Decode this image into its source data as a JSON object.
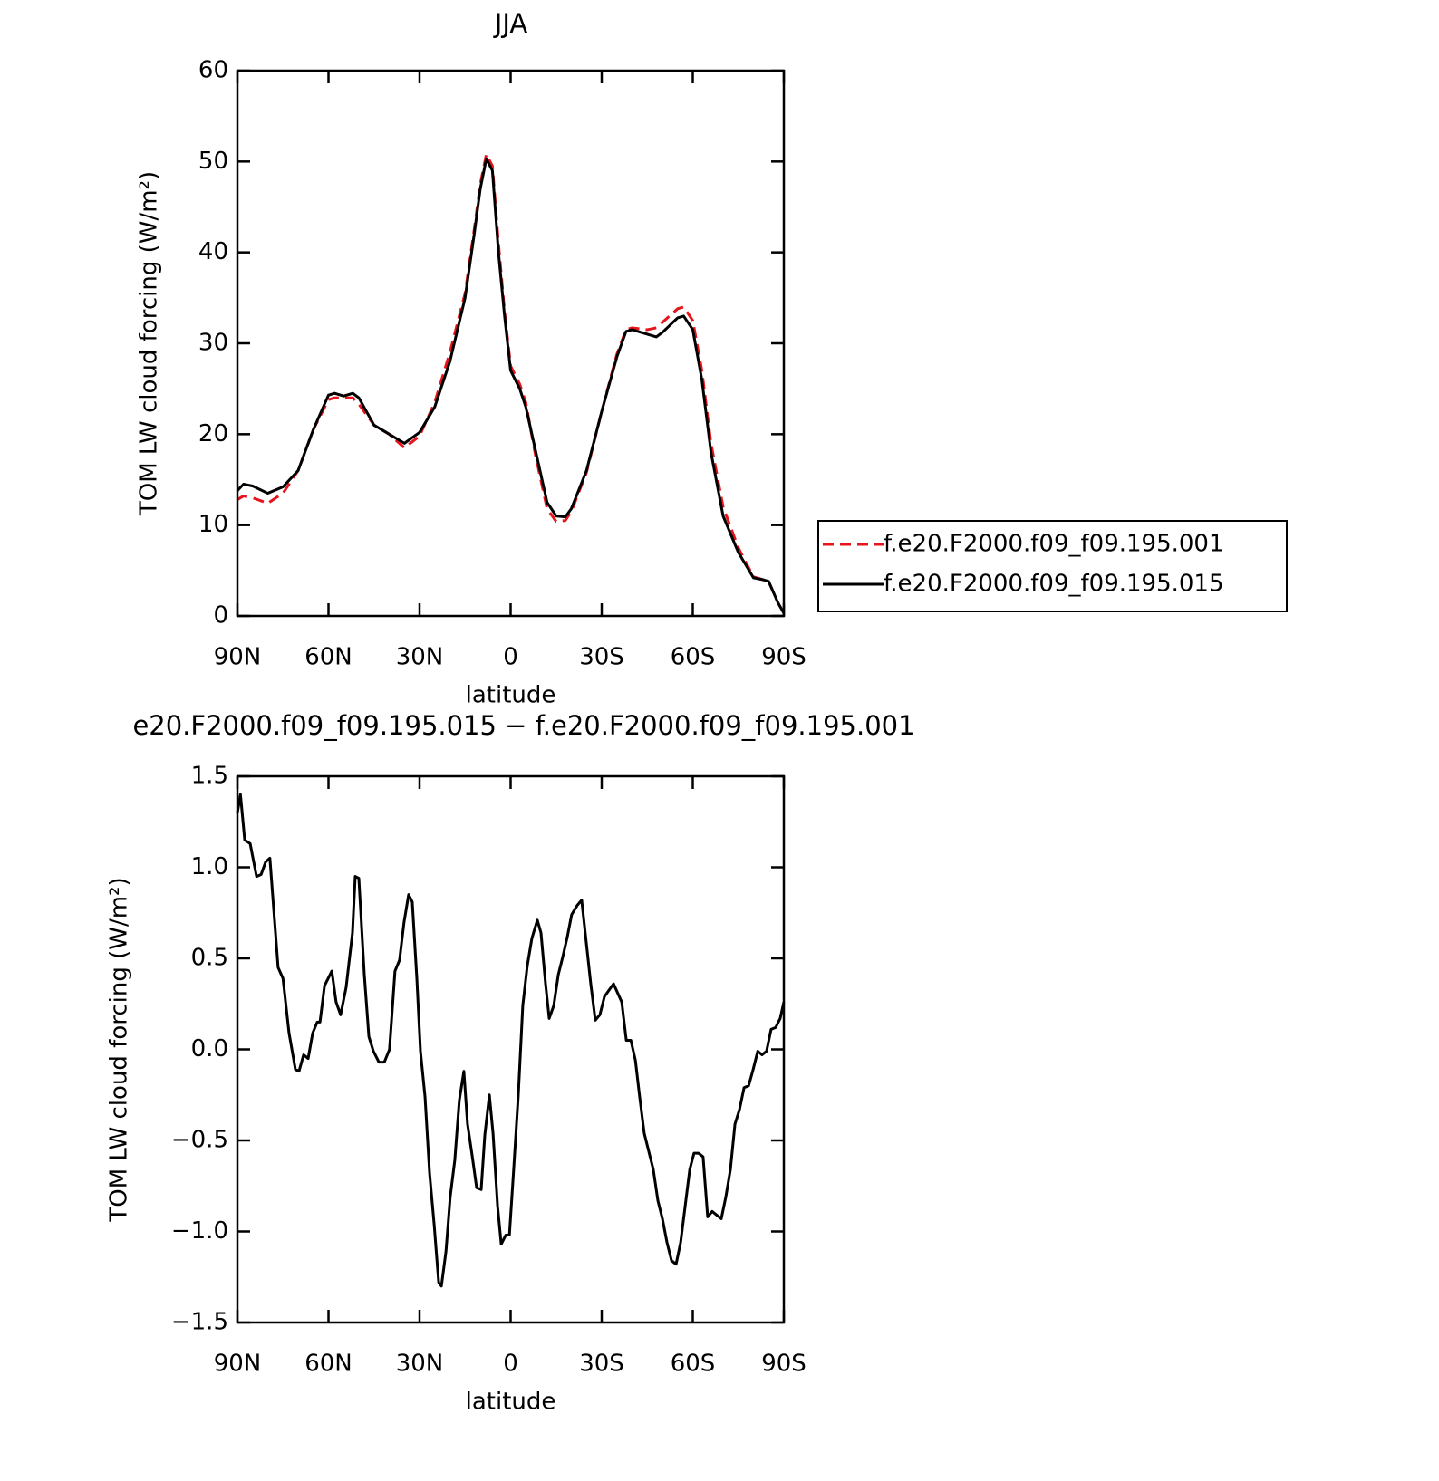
{
  "chart_data": [
    {
      "type": "line",
      "title": "JJA",
      "xlabel": "latitude",
      "ylabel": "TOM LW cloud forcing (W/m²)",
      "xlim": [
        90,
        -90
      ],
      "ylim": [
        0,
        60
      ],
      "xticks": [
        {
          "value": 90,
          "label": "90N"
        },
        {
          "value": 60,
          "label": "60N"
        },
        {
          "value": 30,
          "label": "30N"
        },
        0,
        {
          "value": -30,
          "label": "30S"
        },
        {
          "value": -60,
          "label": "60S"
        },
        {
          "value": -90,
          "label": "90S"
        }
      ],
      "yticks": [
        0,
        10,
        20,
        30,
        40,
        50,
        60
      ],
      "x": [
        90,
        88,
        85,
        80,
        75,
        70,
        65,
        60,
        58,
        55,
        52,
        50,
        45,
        40,
        35,
        30,
        25,
        20,
        15,
        12,
        10,
        8,
        6,
        4,
        2,
        0,
        -3,
        -5,
        -8,
        -12,
        -15,
        -18,
        -20,
        -25,
        -30,
        -35,
        -38,
        -40,
        -45,
        -48,
        -50,
        -55,
        -57,
        -60,
        -63,
        -66,
        -70,
        -75,
        -80,
        -83,
        -85,
        -88,
        -90
      ],
      "series": [
        {
          "name": "f.e20.F2000.f09_f09.195.001",
          "color": "#e8141c",
          "dash": true,
          "values": [
            12.8,
            13.2,
            13,
            12.4,
            13.5,
            16,
            20.5,
            23.8,
            24,
            24,
            24,
            23.3,
            21,
            20,
            18.5,
            19.8,
            23.5,
            29,
            35.5,
            42.5,
            47.5,
            50.8,
            49.5,
            41,
            33.5,
            27.5,
            25.5,
            23.5,
            18,
            11.8,
            10.4,
            10.5,
            11.5,
            15.8,
            22.5,
            28.8,
            31.5,
            31.7,
            31.5,
            31.7,
            32.3,
            33.8,
            34,
            32.5,
            27,
            19,
            12,
            7.5,
            4.3,
            4,
            3.8,
            1.5,
            0.3
          ]
        },
        {
          "name": "f.e20.F2000.f09_f09.195.015",
          "color": "#000000",
          "dash": false,
          "values": [
            13.8,
            14.5,
            14.3,
            13.5,
            14.2,
            16,
            20.5,
            24.3,
            24.5,
            24.2,
            24.5,
            24,
            21,
            20,
            19,
            20.2,
            23,
            28,
            35,
            42,
            47,
            50.3,
            49,
            40,
            33,
            27,
            25,
            23,
            18.5,
            12.5,
            11,
            10.9,
            11.8,
            16,
            22.5,
            28.5,
            31.3,
            31.5,
            31,
            30.7,
            31.2,
            32.8,
            33,
            31.5,
            26,
            18,
            11,
            7,
            4.2,
            4,
            3.8,
            1.5,
            0.3
          ]
        }
      ],
      "legend": "right"
    },
    {
      "type": "line",
      "title": "e20.F2000.f09_f09.195.015 − f.e20.F2000.f09_f09.195.001",
      "xlabel": "latitude",
      "ylabel": "TOM LW cloud forcing (W/m²)",
      "xlim": [
        90,
        -90
      ],
      "ylim": [
        -1.5,
        1.5
      ],
      "xticks": [
        {
          "value": 90,
          "label": "90N"
        },
        {
          "value": 60,
          "label": "60N"
        },
        {
          "value": 30,
          "label": "30N"
        },
        0,
        {
          "value": -30,
          "label": "30S"
        },
        {
          "value": -60,
          "label": "60S"
        },
        {
          "value": -90,
          "label": "90S"
        }
      ],
      "yticks": [
        {
          "value": -1.5,
          "label": "−1.5"
        },
        {
          "value": -1,
          "label": "−1.0"
        },
        {
          "value": -0.5,
          "label": "−0.5"
        },
        {
          "value": 0,
          "label": "0.0"
        },
        0.5,
        {
          "value": 1,
          "label": "1.0"
        },
        1.5
      ],
      "x": [
        90,
        89,
        87.6,
        85.8,
        83.7,
        82.2,
        80.7,
        79.3,
        78,
        76.6,
        75,
        73,
        70.9,
        69.7,
        68.2,
        66.7,
        65.2,
        63.7,
        62.8,
        61.3,
        58.9,
        57.5,
        56,
        54.2,
        52.1,
        51.2,
        50,
        48.2,
        46.7,
        45.2,
        43.4,
        41.6,
        39.9,
        38.1,
        36.6,
        35.1,
        33.6,
        32.4,
        30.9,
        29.7,
        28.2,
        26.7,
        25.2,
        23.7,
        22.8,
        21.3,
        19.9,
        18.4,
        16.9,
        15.4,
        14.2,
        12.7,
        11.2,
        9.7,
        8.5,
        7,
        5.8,
        4.3,
        3.1,
        1.6,
        0.4,
        -1,
        -2.5,
        -4,
        -5.5,
        -7,
        -8.8,
        -10,
        -11.5,
        -12.7,
        -14.2,
        -15.7,
        -17.2,
        -18.7,
        -20.1,
        -21.9,
        -23.4,
        -24.9,
        -26.4,
        -27.9,
        -29.4,
        -30.9,
        -33.9,
        -36.6,
        -38.1,
        -39.6,
        -41.1,
        -42.5,
        -44,
        -45.5,
        -47,
        -48.5,
        -50,
        -51.5,
        -53,
        -54.5,
        -56,
        -57.5,
        -59,
        -60.4,
        -61.9,
        -63.4,
        -64.9,
        -66.4,
        -67.9,
        -69.4,
        -70.9,
        -72.4,
        -73.9,
        -75.4,
        -76.9,
        -78.4,
        -79.9,
        -81.4,
        -82.8,
        -84.3,
        -85.8,
        -87.3,
        -88.8,
        -90
      ],
      "series": [
        {
          "name": null,
          "color": "#000000",
          "dash": false,
          "values": [
            1.3,
            1.4,
            1.15,
            1.13,
            0.95,
            0.96,
            1.03,
            1.05,
            0.76,
            0.45,
            0.39,
            0.09,
            -0.11,
            -0.12,
            -0.03,
            -0.05,
            0.09,
            0.15,
            0.15,
            0.35,
            0.43,
            0.26,
            0.19,
            0.34,
            0.64,
            0.95,
            0.94,
            0.41,
            0.07,
            -0.01,
            -0.07,
            -0.07,
            0,
            0.43,
            0.49,
            0.7,
            0.85,
            0.81,
            0.39,
            -0.01,
            -0.26,
            -0.68,
            -0.96,
            -1.28,
            -1.3,
            -1.11,
            -0.81,
            -0.61,
            -0.28,
            -0.12,
            -0.41,
            -0.58,
            -0.76,
            -0.77,
            -0.47,
            -0.25,
            -0.46,
            -0.86,
            -1.07,
            -1.02,
            -1.02,
            -0.66,
            -0.26,
            0.24,
            0.46,
            0.61,
            0.71,
            0.64,
            0.36,
            0.17,
            0.24,
            0.41,
            0.51,
            0.62,
            0.74,
            0.79,
            0.82,
            0.59,
            0.36,
            0.16,
            0.19,
            0.29,
            0.36,
            0.26,
            0.05,
            0.05,
            -0.06,
            -0.26,
            -0.46,
            -0.56,
            -0.66,
            -0.83,
            -0.93,
            -1.06,
            -1.16,
            -1.18,
            -1.06,
            -0.86,
            -0.66,
            -0.57,
            -0.57,
            -0.59,
            -0.92,
            -0.89,
            -0.91,
            -0.93,
            -0.81,
            -0.66,
            -0.41,
            -0.33,
            -0.21,
            -0.2,
            -0.11,
            -0.01,
            -0.03,
            -0.01,
            0.11,
            0.12,
            0.17,
            0.26
          ]
        }
      ]
    }
  ]
}
